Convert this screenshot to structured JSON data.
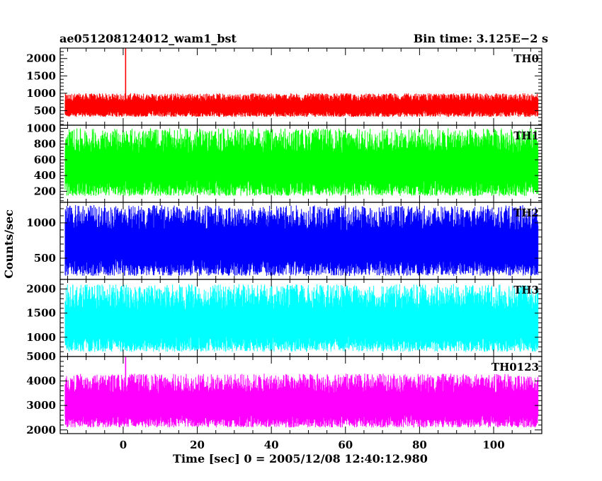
{
  "header": {
    "left_title": "ae051208124012_wam1_bst",
    "right_title": "Bin time: 3.125E−2 s"
  },
  "chart_data": {
    "type": "line",
    "title": "ae051208124012_wam1_bst",
    "subtitle": "Bin time: 3.125E−2 s",
    "xlabel": "Time [sec] 0 = 2005/12/08 12:40:12.980",
    "ylabel": "Counts/sec",
    "xlim": [
      -17,
      113
    ],
    "x_ticks": [
      0,
      20,
      40,
      60,
      80,
      100
    ],
    "data_x_range": [
      -15.6,
      111.8
    ],
    "grid": false,
    "panels": [
      {
        "name": "TH0",
        "color": "#ff0000",
        "ylim": [
          80,
          2300
        ],
        "y_ticks": [
          500,
          1000,
          1500,
          2000
        ],
        "baseline": 650,
        "noise_low": 320,
        "noise_high": 1000,
        "spikes": [
          {
            "x": 0.6,
            "y": 2300
          }
        ]
      },
      {
        "name": "TH1",
        "color": "#00ff00",
        "ylim": [
          60,
          1040
        ],
        "y_ticks": [
          200,
          400,
          600,
          800,
          1000
        ],
        "baseline": 520,
        "noise_low": 140,
        "noise_high": 1000,
        "spikes": []
      },
      {
        "name": "TH2",
        "color": "#0000ff",
        "ylim": [
          200,
          1290
        ],
        "y_ticks": [
          500,
          1000
        ],
        "baseline": 700,
        "noise_low": 250,
        "noise_high": 1250,
        "spikes": []
      },
      {
        "name": "TH3",
        "color": "#00ffff",
        "ylim": [
          600,
          2200
        ],
        "y_ticks": [
          1000,
          1500,
          2000
        ],
        "baseline": 1300,
        "noise_low": 700,
        "noise_high": 2100,
        "spikes": []
      },
      {
        "name": "TH0123",
        "color": "#ff00ff",
        "ylim": [
          1850,
          5000
        ],
        "y_ticks": [
          2000,
          3000,
          4000,
          5000
        ],
        "baseline": 3050,
        "noise_low": 2100,
        "noise_high": 4300,
        "spikes": [
          {
            "x": 0.6,
            "y": 5000
          }
        ]
      }
    ]
  }
}
